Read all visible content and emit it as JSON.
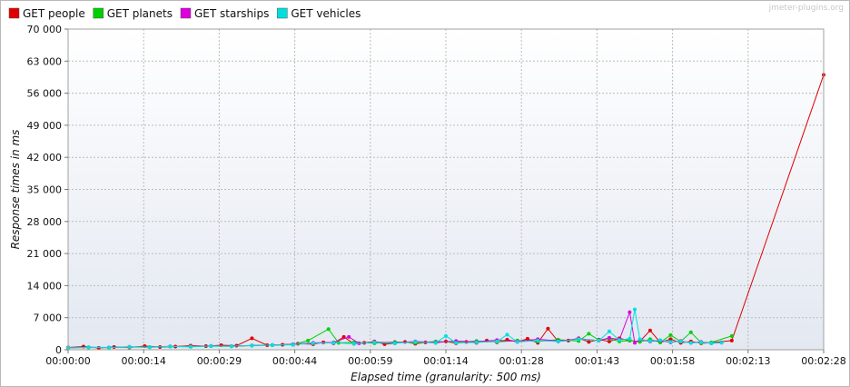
{
  "watermark": "jmeter-plugins.org",
  "chart_data": {
    "type": "line",
    "xlabel": "Elapsed time (granularity: 500 ms)",
    "ylabel": "Response times in ms",
    "ylim": [
      0,
      70000
    ],
    "xlim_seconds": [
      0,
      148
    ],
    "y_ticks": [
      "0",
      "7 000",
      "14 000",
      "21 000",
      "28 000",
      "35 000",
      "42 000",
      "49 000",
      "56 000",
      "63 000",
      "70 000"
    ],
    "x_ticks": [
      "00:00:00",
      "00:00:14",
      "00:00:29",
      "00:00:44",
      "00:00:59",
      "00:01:14",
      "00:01:28",
      "00:01:43",
      "00:01:58",
      "00:02:13",
      "00:02:28"
    ],
    "grid": true,
    "legend_position": "top-left",
    "series": [
      {
        "name": "GET people",
        "color": "#e00000",
        "points": [
          [
            0,
            500
          ],
          [
            3,
            700
          ],
          [
            6,
            400
          ],
          [
            9,
            600
          ],
          [
            12,
            500
          ],
          [
            15,
            800
          ],
          [
            18,
            600
          ],
          [
            21,
            700
          ],
          [
            24,
            900
          ],
          [
            27,
            800
          ],
          [
            30,
            1000
          ],
          [
            33,
            900
          ],
          [
            36,
            2500
          ],
          [
            39,
            1000
          ],
          [
            42,
            1100
          ],
          [
            45,
            1300
          ],
          [
            48,
            1200
          ],
          [
            50,
            1600
          ],
          [
            52,
            1400
          ],
          [
            54,
            2800
          ],
          [
            56,
            1300
          ],
          [
            58,
            1500
          ],
          [
            60,
            1800
          ],
          [
            62,
            1200
          ],
          [
            64,
            1400
          ],
          [
            66,
            1700
          ],
          [
            68,
            1300
          ],
          [
            70,
            1600
          ],
          [
            72,
            1500
          ],
          [
            74,
            1800
          ],
          [
            76,
            1400
          ],
          [
            78,
            1700
          ],
          [
            80,
            1500
          ],
          [
            82,
            2000
          ],
          [
            84,
            1600
          ],
          [
            86,
            2200
          ],
          [
            88,
            1700
          ],
          [
            90,
            2400
          ],
          [
            92,
            1500
          ],
          [
            94,
            4600
          ],
          [
            96,
            1800
          ],
          [
            98,
            2000
          ],
          [
            100,
            2500
          ],
          [
            102,
            1700
          ],
          [
            104,
            2200
          ],
          [
            106,
            1800
          ],
          [
            108,
            2500
          ],
          [
            110,
            2000
          ],
          [
            112,
            1800
          ],
          [
            114,
            4200
          ],
          [
            116,
            1600
          ],
          [
            118,
            2300
          ],
          [
            120,
            1500
          ],
          [
            122,
            1800
          ],
          [
            124,
            1400
          ],
          [
            126,
            1500
          ],
          [
            130,
            2000
          ],
          [
            148,
            60000
          ]
        ]
      },
      {
        "name": "GET planets",
        "color": "#00d000",
        "points": [
          [
            0,
            400
          ],
          [
            4,
            500
          ],
          [
            8,
            450
          ],
          [
            12,
            600
          ],
          [
            16,
            550
          ],
          [
            20,
            700
          ],
          [
            24,
            650
          ],
          [
            28,
            800
          ],
          [
            32,
            750
          ],
          [
            36,
            900
          ],
          [
            40,
            1000
          ],
          [
            44,
            1100
          ],
          [
            47,
            2000
          ],
          [
            51,
            4500
          ],
          [
            53,
            1500
          ],
          [
            56,
            1600
          ],
          [
            60,
            1400
          ],
          [
            64,
            1700
          ],
          [
            68,
            1500
          ],
          [
            72,
            1800
          ],
          [
            76,
            1600
          ],
          [
            80,
            1900
          ],
          [
            84,
            1700
          ],
          [
            88,
            2000
          ],
          [
            92,
            1800
          ],
          [
            96,
            2200
          ],
          [
            100,
            1900
          ],
          [
            102,
            3500
          ],
          [
            104,
            2100
          ],
          [
            106,
            2400
          ],
          [
            108,
            1800
          ],
          [
            110,
            2000
          ],
          [
            112,
            1700
          ],
          [
            114,
            2300
          ],
          [
            116,
            1600
          ],
          [
            118,
            3200
          ],
          [
            120,
            1800
          ],
          [
            122,
            3800
          ],
          [
            124,
            1500
          ],
          [
            126,
            1600
          ],
          [
            130,
            3000
          ]
        ]
      },
      {
        "name": "GET starships",
        "color": "#dd00dd",
        "points": [
          [
            0,
            450
          ],
          [
            4,
            550
          ],
          [
            8,
            500
          ],
          [
            12,
            650
          ],
          [
            16,
            600
          ],
          [
            20,
            750
          ],
          [
            24,
            700
          ],
          [
            28,
            850
          ],
          [
            32,
            800
          ],
          [
            36,
            950
          ],
          [
            40,
            1050
          ],
          [
            44,
            1200
          ],
          [
            48,
            1500
          ],
          [
            52,
            1600
          ],
          [
            55,
            2800
          ],
          [
            57,
            1400
          ],
          [
            60,
            1700
          ],
          [
            64,
            1500
          ],
          [
            68,
            1800
          ],
          [
            72,
            1600
          ],
          [
            76,
            1900
          ],
          [
            80,
            1700
          ],
          [
            84,
            2100
          ],
          [
            88,
            1800
          ],
          [
            92,
            2300
          ],
          [
            96,
            1900
          ],
          [
            100,
            2400
          ],
          [
            104,
            2000
          ],
          [
            106,
            2600
          ],
          [
            108,
            2200
          ],
          [
            110,
            8200
          ],
          [
            111,
            1500
          ],
          [
            112,
            2200
          ],
          [
            114,
            1800
          ],
          [
            116,
            2000
          ],
          [
            118,
            1600
          ],
          [
            120,
            1900
          ],
          [
            122,
            1500
          ],
          [
            124,
            1700
          ],
          [
            126,
            1400
          ],
          [
            128,
            1600
          ]
        ]
      },
      {
        "name": "GET vehicles",
        "color": "#00dede",
        "points": [
          [
            0,
            420
          ],
          [
            4,
            520
          ],
          [
            8,
            470
          ],
          [
            12,
            620
          ],
          [
            16,
            580
          ],
          [
            20,
            720
          ],
          [
            24,
            680
          ],
          [
            28,
            820
          ],
          [
            32,
            780
          ],
          [
            36,
            920
          ],
          [
            40,
            1020
          ],
          [
            44,
            1150
          ],
          [
            48,
            1400
          ],
          [
            52,
            1500
          ],
          [
            56,
            1300
          ],
          [
            60,
            1600
          ],
          [
            64,
            1400
          ],
          [
            68,
            1700
          ],
          [
            72,
            1500
          ],
          [
            74,
            3000
          ],
          [
            76,
            1500
          ],
          [
            80,
            1600
          ],
          [
            84,
            1800
          ],
          [
            86,
            3300
          ],
          [
            88,
            1700
          ],
          [
            92,
            2000
          ],
          [
            96,
            1800
          ],
          [
            100,
            2300
          ],
          [
            104,
            2000
          ],
          [
            106,
            4000
          ],
          [
            108,
            2100
          ],
          [
            110,
            2400
          ],
          [
            111,
            8800
          ],
          [
            112,
            2300
          ],
          [
            114,
            1900
          ],
          [
            116,
            2100
          ],
          [
            118,
            1700
          ],
          [
            120,
            1800
          ],
          [
            122,
            1500
          ],
          [
            124,
            1600
          ],
          [
            126,
            1400
          ],
          [
            128,
            1500
          ]
        ]
      }
    ]
  }
}
